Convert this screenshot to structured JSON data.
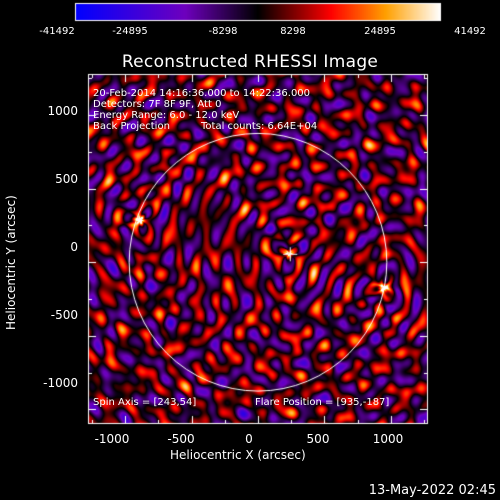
{
  "colorbar": {
    "ticks": [
      "-41492",
      "-24895",
      "-8298",
      "8298",
      "24895",
      "41492"
    ],
    "colors": [
      "#0000ff",
      "#6a00c8",
      "#000000",
      "#ff0000",
      "#ffa000",
      "#ffffff"
    ]
  },
  "title": "Reconstructed RHESSI Image",
  "annotations": {
    "line1": "20-Feb-2014 14:16:36.000 to 14:22:36.000",
    "line2": "Detectors: 7F 8F 9F, Att 0",
    "line3": "Energy Range: 6.0 - 12.0 keV",
    "line4_a": "Back Projection",
    "line4_b": "Total counts: 6.64E+04",
    "spin_axis": "Spin Axis = [243,54]",
    "flare_position": "Flare Position = [935,-187]"
  },
  "axes": {
    "xlabel": "Heliocentric X (arcsec)",
    "ylabel": "Heliocentric Y (arcsec)",
    "xticks": [
      "-1000",
      "-500",
      "0",
      "500",
      "1000"
    ],
    "yticks": [
      "1000",
      "500",
      "0",
      "-500",
      "-1000"
    ]
  },
  "chart_data": {
    "type": "heatmap",
    "title": "Reconstructed RHESSI Image",
    "xlabel": "Heliocentric X (arcsec)",
    "ylabel": "Heliocentric Y (arcsec)",
    "xlim": [
      -1280,
      1280
    ],
    "ylim": [
      -1100,
      1280
    ],
    "xticks": [
      -1000,
      -500,
      0,
      500,
      1000
    ],
    "yticks": [
      -1000,
      -500,
      0,
      500,
      1000
    ],
    "colorbar_range": [
      -41492,
      41492
    ],
    "solar_limb_radius": 970,
    "bright_sources": [
      {
        "x": 230,
        "y": 60,
        "level": 41492
      },
      {
        "x": -890,
        "y": 290,
        "level": 41492
      },
      {
        "x": 940,
        "y": -170,
        "level": 41492
      }
    ],
    "spin_axis": [
      243,
      54
    ],
    "flare_position": [
      935,
      -187
    ]
  },
  "timestamp": "13-May-2022 02:45"
}
